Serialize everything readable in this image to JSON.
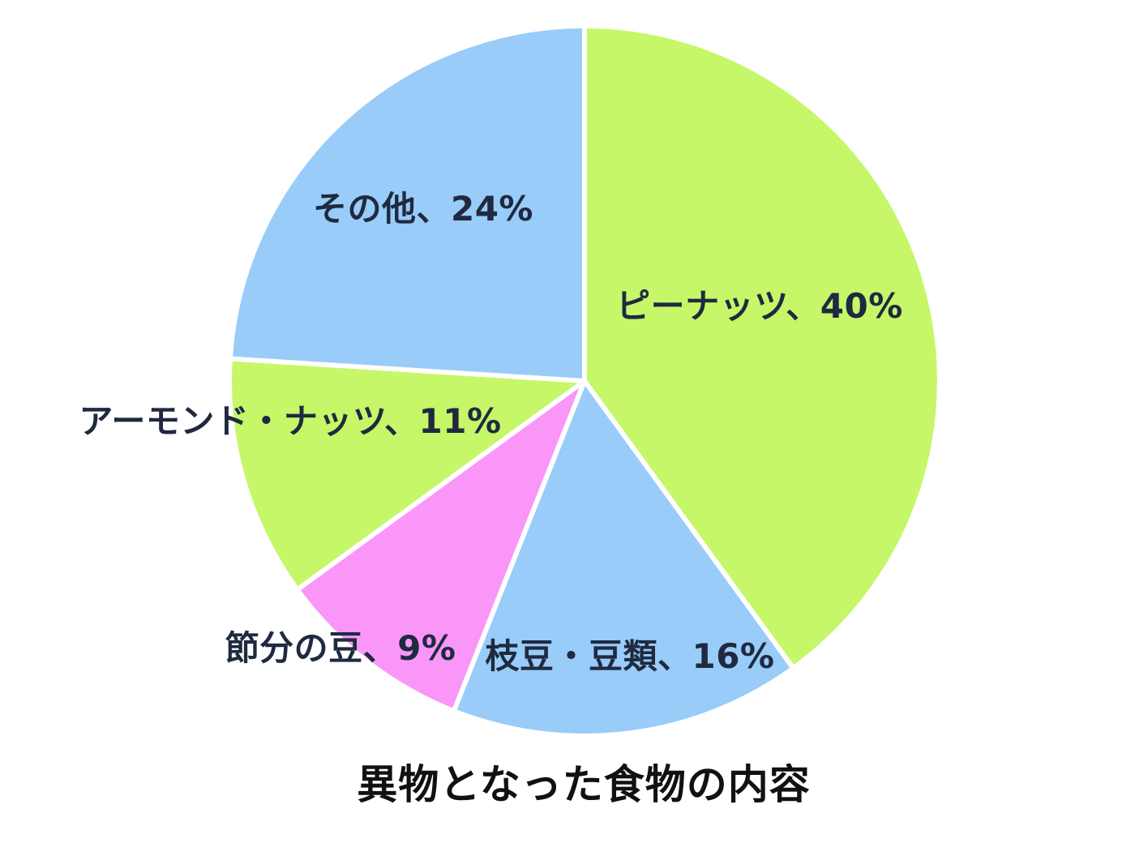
{
  "chart_data": {
    "type": "pie",
    "title": "異物となった食物の内容",
    "start_angle_deg": 0,
    "direction": "clockwise",
    "legend": "none",
    "background_color": "#ffffff",
    "separator_color": "#ffffff",
    "label_color": "#1f2a40",
    "title_color": "#111111",
    "categories": [
      "ピーナッツ",
      "枝豆・豆類",
      "節分の豆",
      "アーモンド・ナッツ",
      "その他"
    ],
    "values": [
      40,
      16,
      9,
      11,
      24
    ],
    "segments": [
      {
        "label": "ピーナッツ",
        "value": 40,
        "display": "ピーナッツ、40%",
        "color": "#c5f768"
      },
      {
        "label": "枝豆・豆類",
        "value": 16,
        "display": "枝豆・豆類、16%",
        "color": "#99ccf8"
      },
      {
        "label": "節分の豆",
        "value": 9,
        "display": "節分の豆、9%",
        "color": "#fa96f8"
      },
      {
        "label": "アーモンド・ナッツ",
        "value": 11,
        "display": "アーモンド・ナッツ、11%",
        "color": "#c5f768"
      },
      {
        "label": "その他",
        "value": 24,
        "display": "その他、24%",
        "color": "#99ccf8"
      }
    ]
  }
}
